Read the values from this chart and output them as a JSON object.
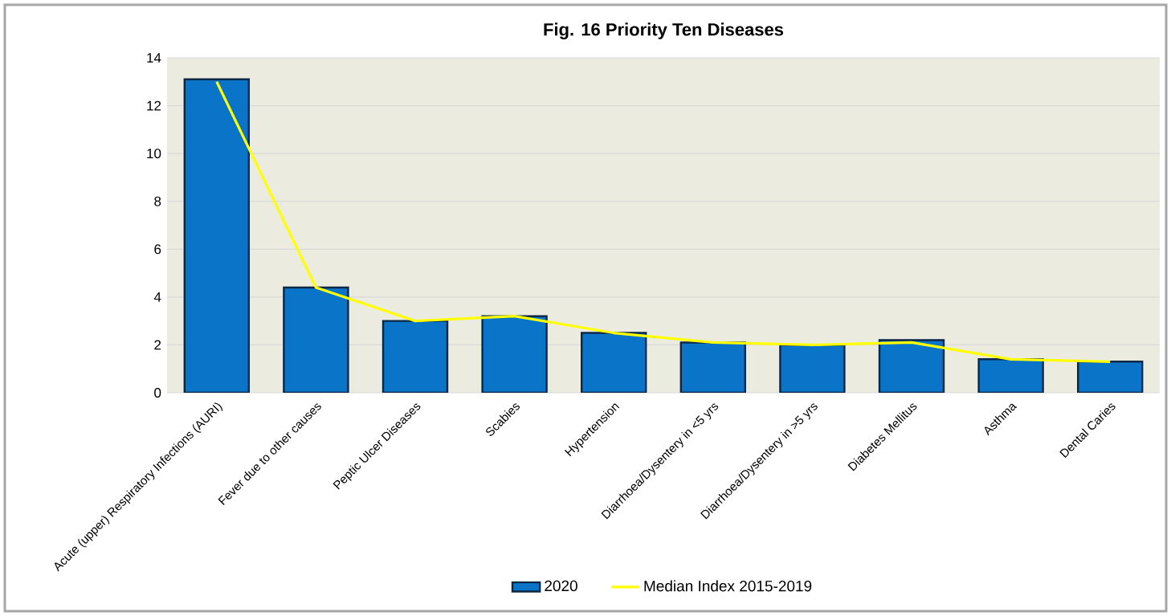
{
  "chart_data": {
    "type": "bar",
    "title": "Fig. 16 Priority Ten Diseases",
    "categories": [
      "Acute (upper) Respiratory Infections (AURI)",
      "Fever due to other causes",
      "Peptic Ulcer Diseases",
      "Scabies",
      "Hypertension",
      "Diarrhoea/Dysentery in <5 yrs",
      "Diarrhoea/Dysentery in >5 yrs",
      "Diabetes Mellitus",
      "Asthma",
      "Dental Caries"
    ],
    "series": [
      {
        "name": "2020",
        "color": "#0a74c8",
        "values": [
          13.1,
          4.4,
          3.0,
          3.2,
          2.5,
          2.1,
          2.0,
          2.2,
          1.4,
          1.3
        ]
      },
      {
        "name": "Median Index 2015-2019",
        "type": "line",
        "color": "#ffff00",
        "values": [
          13.0,
          4.4,
          3.0,
          3.2,
          2.5,
          2.1,
          2.0,
          2.1,
          1.4,
          1.3
        ]
      }
    ],
    "ylim": [
      0,
      14
    ],
    "yticks": [
      0,
      2,
      4,
      6,
      8,
      10,
      12,
      14
    ],
    "grid": "y",
    "legend": "bottom"
  }
}
